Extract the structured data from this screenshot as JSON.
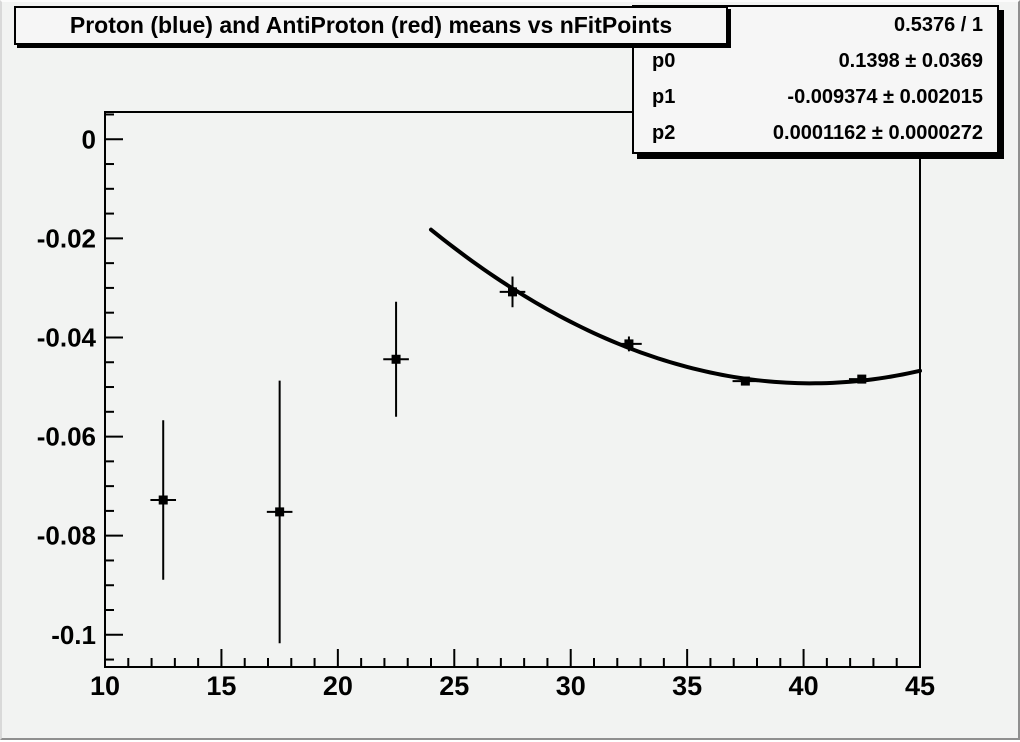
{
  "title_box": {
    "text": "Proton (blue) and AntiProton (red) means vs nFitPoints"
  },
  "stats_box": {
    "chi2_ndf": "0.5376 / 1",
    "rows": [
      {
        "label": "p0",
        "value": "0.1398 ± 0.0369"
      },
      {
        "label": "p1",
        "value": "-0.009374 ± 0.002015"
      },
      {
        "label": "p2",
        "value": "0.0001162 ± 0.0000272"
      }
    ]
  },
  "chart_data": {
    "type": "scatter",
    "title": "Proton (blue) and AntiProton (red) means vs nFitPoints",
    "xlabel": "",
    "ylabel": "",
    "grid": false,
    "marker": "filled-square",
    "color": "#000000",
    "points": [
      {
        "x": 12.5,
        "y": -0.0728,
        "ey": 0.0161
      },
      {
        "x": 17.5,
        "y": -0.0752,
        "ey": 0.0265
      },
      {
        "x": 22.5,
        "y": -0.0444,
        "ey": 0.0116
      },
      {
        "x": 27.5,
        "y": -0.0308,
        "ey": 0.0031
      },
      {
        "x": 32.5,
        "y": -0.0413,
        "ey": 0.0015
      },
      {
        "x": 37.5,
        "y": -0.0488,
        "ey": 0.0008
      },
      {
        "x": 42.5,
        "y": -0.0484,
        "ey": 0.0008
      }
    ],
    "x_err_halfwidth": 0.55,
    "fit": {
      "expr": "p0 + p1*x + p2*x^2",
      "p": [
        0.1398,
        -0.009374,
        0.0001162
      ],
      "p_err": [
        0.0369,
        0.002015,
        2.72e-05
      ],
      "chi2_ndf": "0.5376 / 1",
      "x_range": [
        24,
        45
      ]
    },
    "x_axis": {
      "range": [
        10,
        45
      ],
      "major_ticks": [
        10,
        15,
        20,
        25,
        30,
        35,
        40,
        45
      ],
      "labels": [
        "10",
        "15",
        "20",
        "25",
        "30",
        "35",
        "40",
        "45"
      ],
      "minor_step": 1
    },
    "y_axis": {
      "range": [
        -0.1065,
        0.0055
      ],
      "major_ticks": [
        0,
        -0.02,
        -0.04,
        -0.06,
        -0.08,
        -0.1
      ],
      "labels": [
        "0",
        "-0.02",
        "-0.04",
        "-0.06",
        "-0.08",
        "-0.1"
      ],
      "minor_step": 0.005
    }
  },
  "colors": {
    "canvas_bg": "#f2f3f2",
    "box_bg": "#f6f6f6",
    "line": "#000000"
  }
}
